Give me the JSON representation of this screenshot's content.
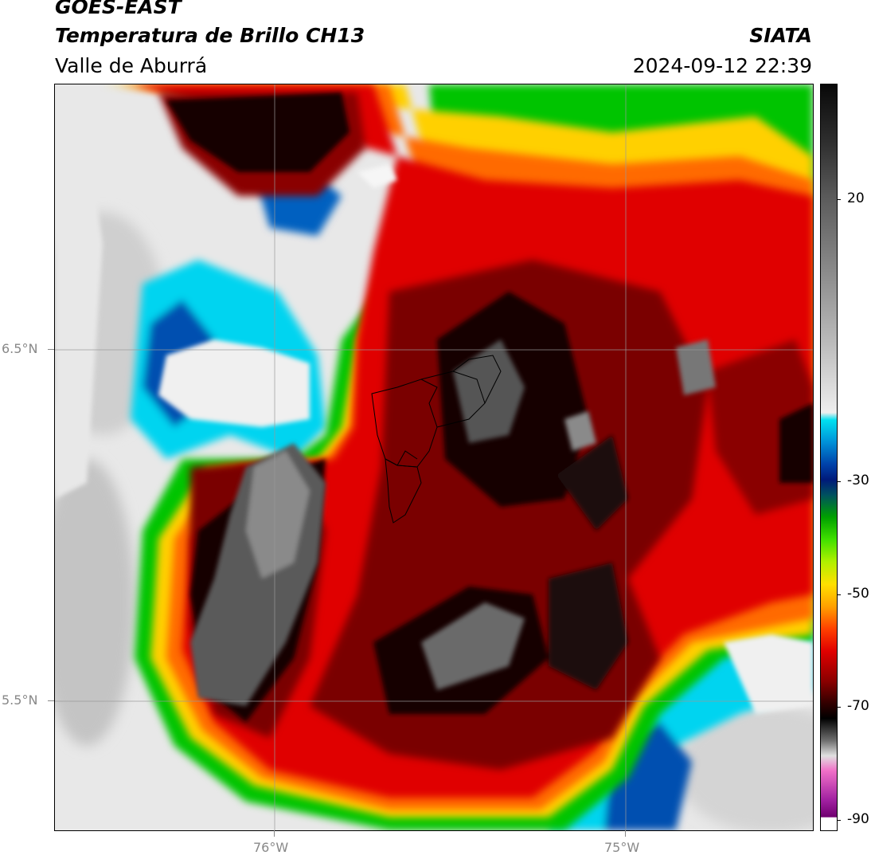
{
  "header": {
    "satellite": "GOES-EAST",
    "product": "Temperatura de Brillo CH13",
    "region": "Valle de Aburrá",
    "agency": "SIATA",
    "datetime": "2024-09-12 22:39"
  },
  "map": {
    "lat_labels": [
      "6.5°N",
      "5.5°N"
    ],
    "lon_labels": [
      "76°W",
      "75°W"
    ],
    "gridlines": true
  },
  "colorbar": {
    "tick_labels": [
      "20",
      "-30",
      "-50",
      "-70",
      "-90"
    ],
    "palette": {
      "white": "#f2f2f2",
      "gray": "#b0b0b0",
      "cyan": "#00d8f0",
      "blue": "#0050b0",
      "darkblue": "#001a7a",
      "green": "#00c800",
      "lime": "#a8f000",
      "yellow": "#ffe000",
      "orange": "#ff7000",
      "red": "#e00000",
      "darkred": "#7a0000",
      "black": "#120606",
      "pink": "#f070c8",
      "purple": "#8a008a"
    }
  }
}
